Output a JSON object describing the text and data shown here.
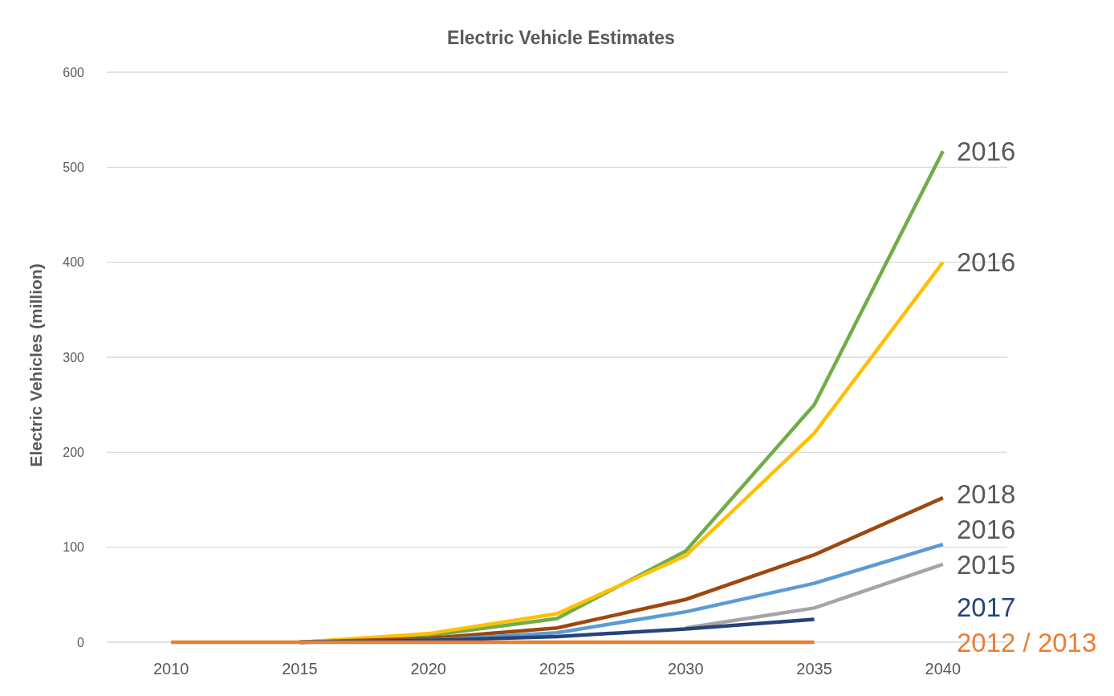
{
  "chart_data": {
    "type": "line",
    "title": "Electric Vehicle Estimates",
    "ylabel": "Electric Vehicles (million)",
    "categories": [
      "2010",
      "2015",
      "2020",
      "2025",
      "2030",
      "2035",
      "2040"
    ],
    "ylim": [
      0,
      600
    ],
    "yticks": [
      0,
      100,
      200,
      300,
      400,
      500,
      600
    ],
    "grid": "y",
    "legend": false,
    "marker": "none",
    "line_style": "solid",
    "series": [
      {
        "name": "2016",
        "color": "#70ad47",
        "values": [
          null,
          0,
          7,
          25,
          96,
          250,
          517
        ]
      },
      {
        "name": "2016",
        "color": "#ffc000",
        "values": [
          null,
          0,
          9,
          30,
          91,
          220,
          400
        ]
      },
      {
        "name": "2018",
        "color": "#9e480e",
        "values": [
          null,
          0,
          4,
          15,
          45,
          92,
          152
        ]
      },
      {
        "name": "2016",
        "color": "#5b9bd5",
        "values": [
          null,
          0,
          2,
          10,
          32,
          62,
          103
        ]
      },
      {
        "name": "2015",
        "color": "#a5a5a5",
        "values": [
          null,
          null,
          null,
          null,
          15,
          36,
          82
        ]
      },
      {
        "name": "2017",
        "color": "#264478",
        "values": [
          null,
          0,
          2,
          6,
          14,
          24,
          null
        ]
      },
      {
        "name": "2012 / 2013",
        "color": "#ed7d31",
        "values": [
          0,
          0,
          0,
          0,
          0,
          0,
          null
        ]
      }
    ]
  }
}
